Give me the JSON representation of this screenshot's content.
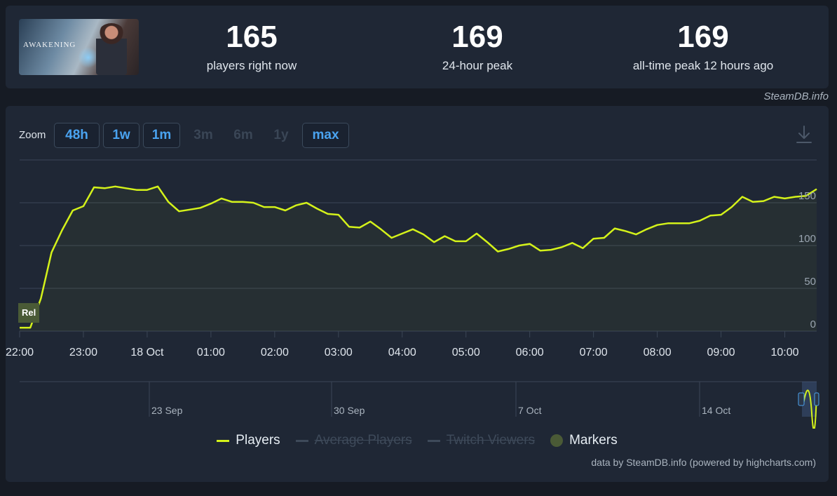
{
  "game": {
    "logo_text": "AWAKENING",
    "thumbnail_icon": "game-thumbnail-image"
  },
  "stats": [
    {
      "value": "165",
      "label": "players right now"
    },
    {
      "value": "169",
      "label": "24-hour peak"
    },
    {
      "value": "169",
      "label": "all-time peak 12 hours ago"
    }
  ],
  "credit_top": "SteamDB.info",
  "zoom": {
    "label": "Zoom",
    "buttons": [
      {
        "label": "48h",
        "enabled": true
      },
      {
        "label": "1w",
        "enabled": true
      },
      {
        "label": "1m",
        "enabled": true
      },
      {
        "label": "3m",
        "enabled": false
      },
      {
        "label": "6m",
        "enabled": false
      },
      {
        "label": "1y",
        "enabled": false
      },
      {
        "label": "max",
        "enabled": true
      }
    ]
  },
  "download_icon": "download-icon",
  "colors": {
    "players": "#d4f21a",
    "marker": "#4a5a36",
    "grid": "#3b4656",
    "background": "#1f2735"
  },
  "chart_data": {
    "type": "line",
    "x_unit": "minutes since 22:00",
    "xlim": [
      0,
      750
    ],
    "ylim": [
      0,
      200
    ],
    "y_ticks": [
      0,
      50,
      100,
      150
    ],
    "x_ticks": [
      {
        "at": 0,
        "label": "22:00"
      },
      {
        "at": 60,
        "label": "23:00"
      },
      {
        "at": 120,
        "label": "18 Oct"
      },
      {
        "at": 180,
        "label": "01:00"
      },
      {
        "at": 240,
        "label": "02:00"
      },
      {
        "at": 300,
        "label": "03:00"
      },
      {
        "at": 360,
        "label": "04:00"
      },
      {
        "at": 420,
        "label": "05:00"
      },
      {
        "at": 480,
        "label": "06:00"
      },
      {
        "at": 540,
        "label": "07:00"
      },
      {
        "at": 600,
        "label": "08:00"
      },
      {
        "at": 660,
        "label": "09:00"
      },
      {
        "at": 720,
        "label": "10:00"
      }
    ],
    "series": [
      {
        "name": "Players",
        "x": [
          0,
          10,
          20,
          30,
          40,
          50,
          60,
          70,
          80,
          90,
          100,
          110,
          120,
          130,
          140,
          150,
          160,
          170,
          180,
          190,
          200,
          210,
          220,
          230,
          240,
          250,
          260,
          270,
          280,
          290,
          300,
          310,
          320,
          330,
          340,
          350,
          360,
          370,
          380,
          390,
          400,
          410,
          420,
          430,
          440,
          450,
          460,
          470,
          480,
          490,
          500,
          510,
          520,
          530,
          540,
          550,
          560,
          570,
          580,
          590,
          600,
          610,
          620,
          630,
          640,
          650,
          660,
          670,
          680,
          690,
          700,
          710,
          720,
          730,
          740,
          750
        ],
        "y": [
          4,
          4,
          38,
          92,
          118,
          141,
          146,
          168,
          167,
          169,
          167,
          165,
          165,
          169,
          151,
          140,
          142,
          144,
          149,
          155,
          151,
          151,
          150,
          145,
          145,
          141,
          147,
          150,
          143,
          137,
          136,
          122,
          121,
          128,
          119,
          109,
          114,
          119,
          113,
          104,
          111,
          105,
          105,
          114,
          104,
          93,
          96,
          100,
          102,
          94,
          95,
          98,
          103,
          97,
          108,
          109,
          120,
          117,
          113,
          119,
          124,
          126,
          126,
          126,
          129,
          135,
          136,
          145,
          157,
          151,
          152,
          157,
          155,
          157,
          158,
          166
        ]
      }
    ],
    "markers": [
      {
        "at": 0,
        "label": "Rel"
      }
    ],
    "navigator": {
      "labels": [
        "23 Sep",
        "30 Sep",
        "7 Oct",
        "14 Oct"
      ]
    },
    "legend": [
      {
        "label": "Players",
        "visible": true
      },
      {
        "label": "Average Players",
        "visible": false
      },
      {
        "label": "Twitch Viewers",
        "visible": false
      },
      {
        "label": "Markers",
        "visible": true
      }
    ],
    "legend_placement": "bottom",
    "grid": true
  },
  "credit_bottom": "data by SteamDB.info (powered by highcharts.com)"
}
